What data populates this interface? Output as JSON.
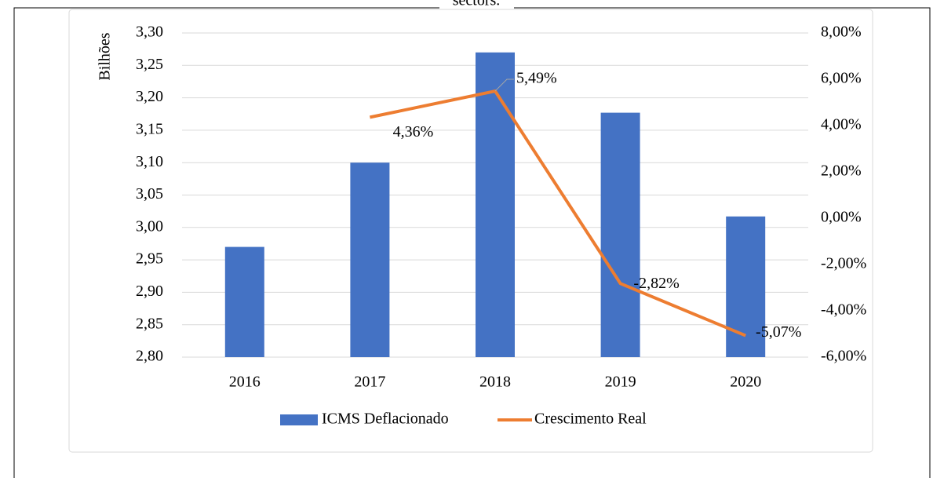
{
  "caption": "sectors.",
  "chart_data": {
    "type": "bar_line",
    "y_axis_label": "Bilhões",
    "categories": [
      "2016",
      "2017",
      "2018",
      "2019",
      "2020"
    ],
    "series": [
      {
        "name": "ICMS Deflacionado",
        "type": "bar",
        "color": "#4472c4",
        "values": [
          2.97,
          3.1,
          3.27,
          3.177,
          3.017
        ]
      },
      {
        "name": "Crescimento Real",
        "type": "line",
        "axis": "y2",
        "color": "#ed7d31",
        "values": [
          null,
          4.36,
          5.49,
          -2.82,
          -5.07
        ],
        "value_labels": [
          null,
          "4,36%",
          "5,49%",
          "-2,82%",
          "-5,07%"
        ]
      }
    ],
    "ylim": [
      2.8,
      3.3
    ],
    "yticks": [
      {
        "value": 2.8,
        "label": "2,80"
      },
      {
        "value": 2.85,
        "label": "2,85"
      },
      {
        "value": 2.9,
        "label": "2,90"
      },
      {
        "value": 2.95,
        "label": "2,95"
      },
      {
        "value": 3.0,
        "label": "3,00"
      },
      {
        "value": 3.05,
        "label": "3,05"
      },
      {
        "value": 3.1,
        "label": "3,10"
      },
      {
        "value": 3.15,
        "label": "3,15"
      },
      {
        "value": 3.2,
        "label": "3,20"
      },
      {
        "value": 3.25,
        "label": "3,25"
      },
      {
        "value": 3.3,
        "label": "3,30"
      }
    ],
    "y2lim": [
      -6,
      8
    ],
    "y2ticks": [
      {
        "value": -6,
        "label": "-6,00%"
      },
      {
        "value": -4,
        "label": "-4,00%"
      },
      {
        "value": -2,
        "label": "-2,00%"
      },
      {
        "value": 0,
        "label": "0,00%"
      },
      {
        "value": 2,
        "label": "2,00%"
      },
      {
        "value": 4,
        "label": "4,00%"
      },
      {
        "value": 6,
        "label": "6,00%"
      },
      {
        "value": 8,
        "label": "8,00%"
      }
    ],
    "grid": true,
    "legend": "bottom"
  }
}
